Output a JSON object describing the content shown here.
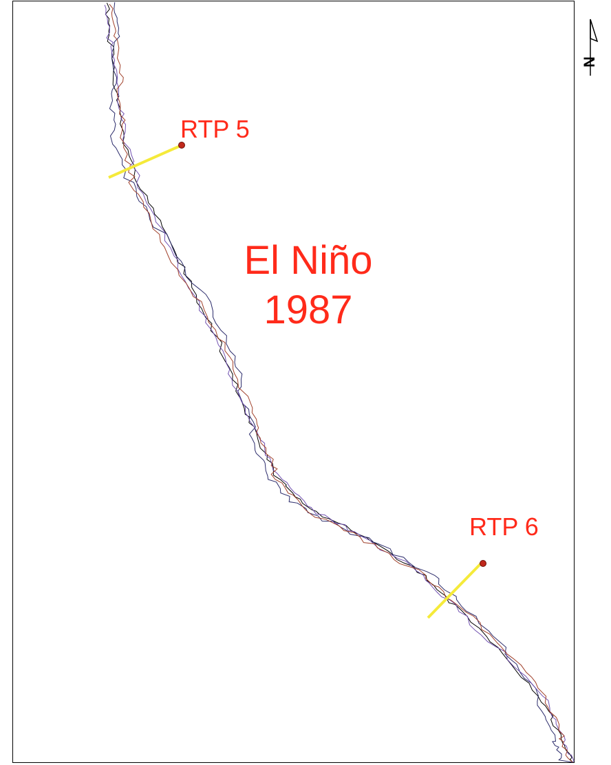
{
  "labels": {
    "rtp5": "RTP 5",
    "rtp6": "RTP 6",
    "title_line1": "El Niño",
    "title_line2": "1987"
  },
  "north_arrow": "N"
}
